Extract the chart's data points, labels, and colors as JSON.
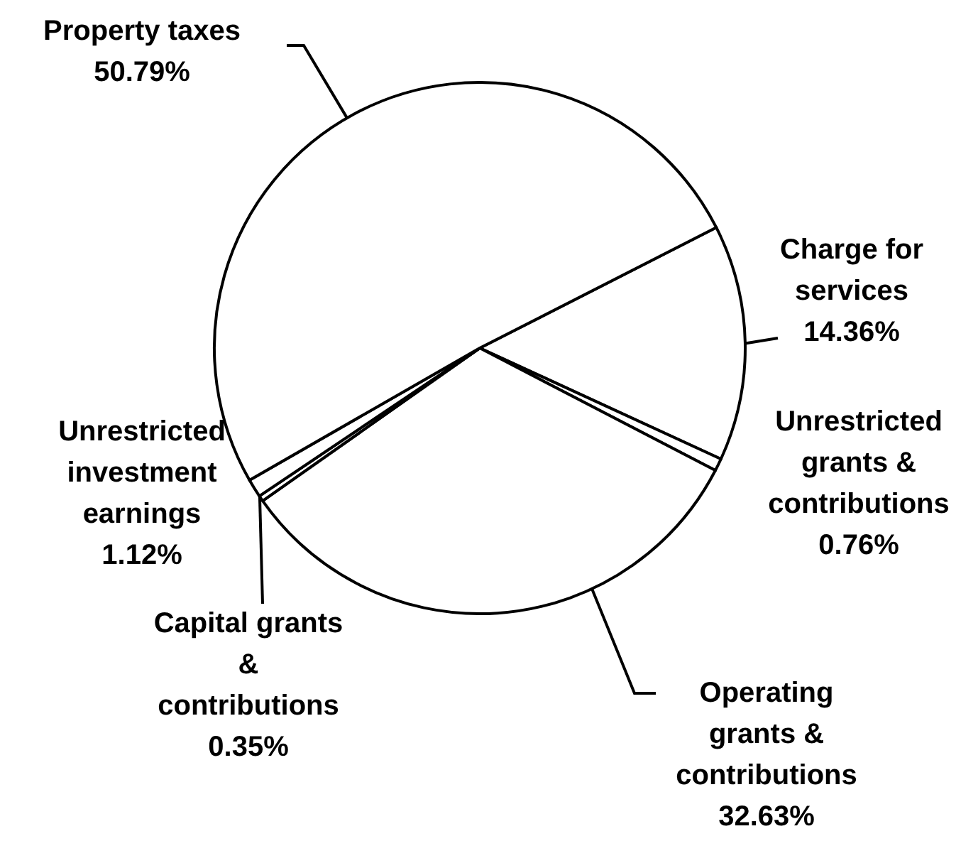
{
  "chart_data": {
    "type": "pie",
    "categories": [
      "Charge for services",
      "Unrestricted grants & contributions",
      "Operating grants & contributions",
      "Capital grants & contributions",
      "Unrestricted investment earnings",
      "Property taxes"
    ],
    "values": [
      14.36,
      0.76,
      32.63,
      0.35,
      1.12,
      50.79
    ],
    "value_labels": [
      "14.36%",
      "0.76%",
      "32.63%",
      "0.35%",
      "1.12%",
      "50.79%"
    ],
    "colors": [
      "#ffffff",
      "#ffffff",
      "#ffffff",
      "#ffffff",
      "#ffffff",
      "#ffffff"
    ]
  }
}
